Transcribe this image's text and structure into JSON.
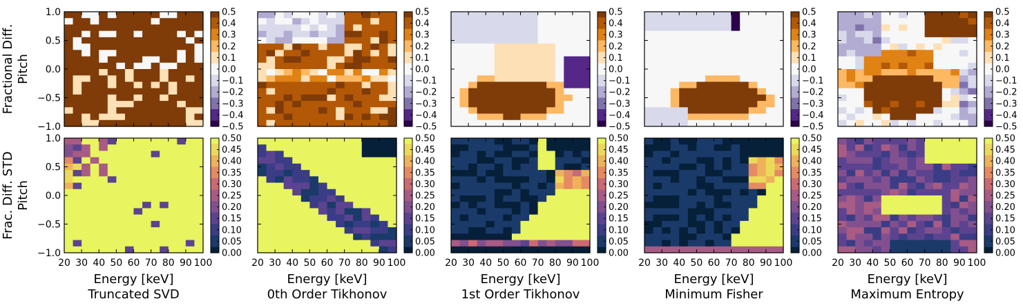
{
  "figure": {
    "row_ylabels": [
      [
        "Fractional Diff.",
        "Pitch"
      ],
      [
        "Frac. Diff. STD",
        "Pitch"
      ]
    ],
    "xlabel": "Energy [keV]",
    "method_titles": [
      "Truncated SVD",
      "0th Order Tikhonov",
      "1st Order Tikhonov",
      "Minimum Fisher",
      "Maximum Entropy"
    ]
  },
  "axes": {
    "x_ticks": [
      "20",
      "30",
      "40",
      "50",
      "60",
      "70",
      "80",
      "90",
      "100"
    ],
    "y_ticks": [
      "1.0",
      "0.5",
      "0.0",
      "−0.5",
      "−1.0"
    ],
    "cbar_top_ticks": [
      "0.5",
      "0.4",
      "0.3",
      "0.2",
      "0.1",
      "0.0",
      "−0.1",
      "−0.2",
      "−0.3",
      "−0.4",
      "−0.5"
    ],
    "cbar_bottom_ticks": [
      "0.50",
      "0.45",
      "0.40",
      "0.35",
      "0.30",
      "0.25",
      "0.20",
      "0.15",
      "0.10",
      "0.05",
      "0.00"
    ]
  },
  "colors": {
    "diverging": [
      "#2d004b",
      "#542788",
      "#8073ac",
      "#b2abd2",
      "#d8daeb",
      "#f7f7f7",
      "#fee0b6",
      "#fdb863",
      "#e08214",
      "#b35806",
      "#7f3b08"
    ],
    "sequential": [
      "#06203a",
      "#1a3a6a",
      "#3a3d85",
      "#5c4390",
      "#82508f",
      "#a85b84",
      "#cb6a72",
      "#e68a63",
      "#eeb35a",
      "#ecd95a",
      "#e8f460"
    ]
  },
  "chart_data": {
    "type": "heatmap",
    "x_range": [
      20,
      100
    ],
    "y_range": [
      -1.0,
      1.0
    ],
    "colorbar_ranges": {
      "fractional_difference": [
        -0.5,
        0.5
      ],
      "fractional_difference_std": [
        0.0,
        0.5
      ]
    },
    "panels": [
      {
        "row": "Fractional Diff.",
        "method": "Truncated SVD",
        "pattern": "saturated brown (>=0.5) over most of pitch-energy plane with scattered purple/white pixels, mostly near high pitch"
      },
      {
        "row": "Fractional Diff.",
        "method": "0th Order Tikhonov",
        "pattern": "light purple at high pitch and low energy, brown bands at mid and negative pitch with scattered white/purple pixels"
      },
      {
        "row": "Fractional Diff.",
        "method": "1st Order Tikhonov",
        "pattern": "smooth; near zero at high pitch, brown region at negative pitch 40-75 keV, purple trough near pitch 0 at 85-100 keV"
      },
      {
        "row": "Fractional Diff.",
        "method": "Minimum Fisher",
        "pattern": "smooth; near zero over most of plane, brown region at negative pitch 55-90 keV, dark purple pixels at top"
      },
      {
        "row": "Fractional Diff.",
        "method": "Maximum Entropy",
        "pattern": "orange/brown bands across mid pitch, brown region at negative pitch, purple patches at edges"
      },
      {
        "row": "Frac. Diff. STD",
        "method": "Truncated SVD",
        "pattern": "mostly yellow (>=0.5); dark/purple pixels at upper-left and isolated dark pixels"
      },
      {
        "row": "Frac. Diff. STD",
        "method": "0th Order Tikhonov",
        "pattern": "dark diagonal band from upper-left, yellow elsewhere, dark patch top-right"
      },
      {
        "row": "Frac. Diff. STD",
        "method": "1st Order Tikhonov",
        "pattern": "dark navy (~0) over upper-left and left, yellow region at lower right, dark stripe at bottom"
      },
      {
        "row": "Frac. Diff. STD",
        "method": "Minimum Fisher",
        "pattern": "dark navy over upper-left, yellow at lower right, dark stripe near bottom"
      },
      {
        "row": "Frac. Diff. STD",
        "method": "Maximum Entropy",
        "pattern": "mixed purple/pink (0.15-0.3) over most of plane, yellow at top-right and mid, dark stripe near bottom"
      }
    ]
  }
}
